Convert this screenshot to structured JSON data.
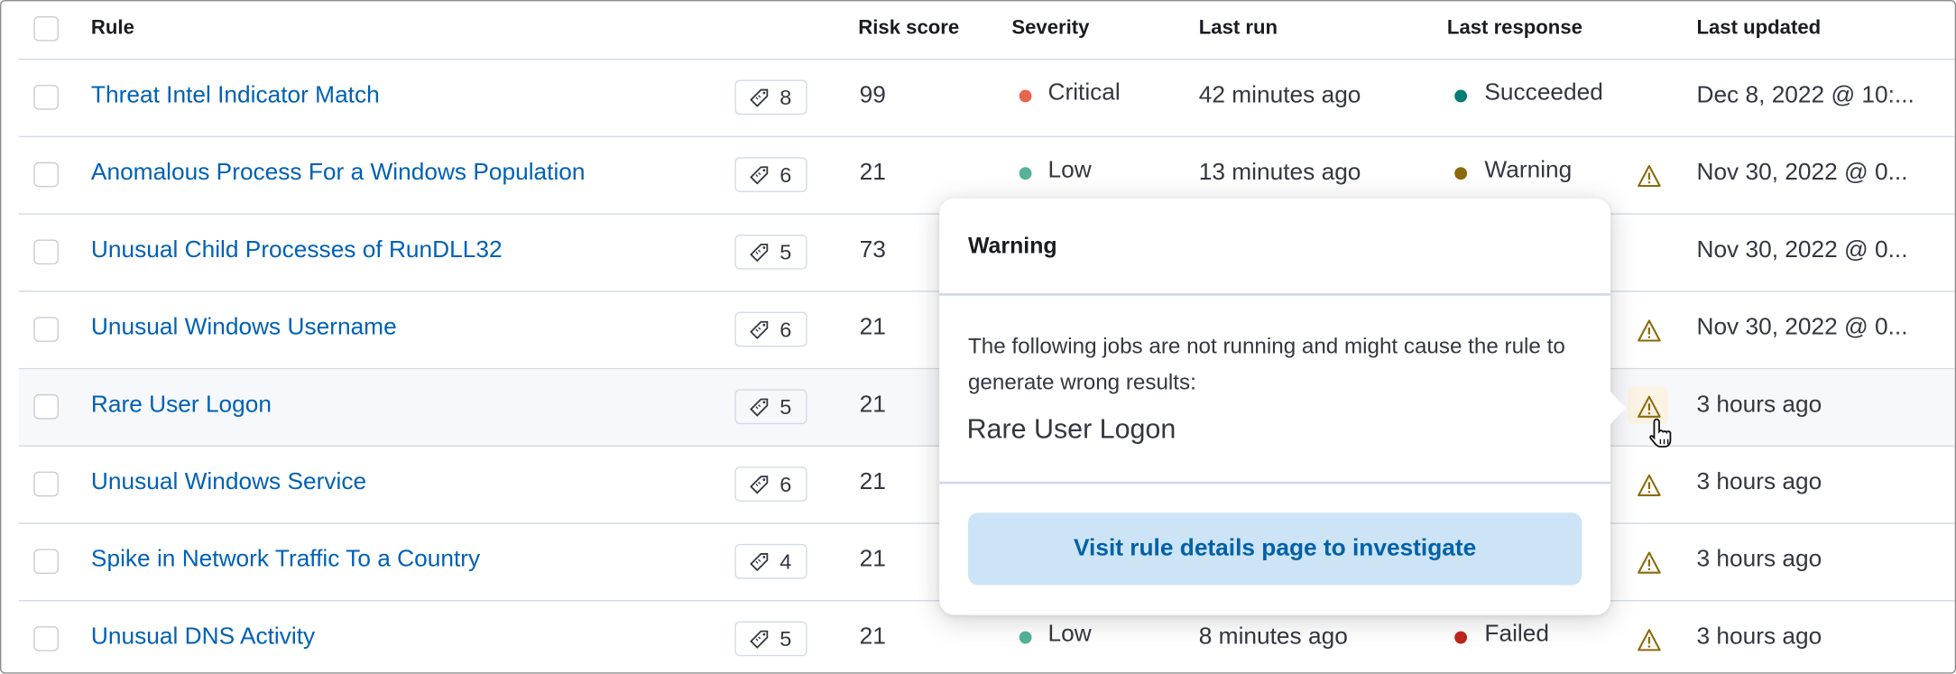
{
  "table": {
    "columns": [
      "Rule",
      "Risk score",
      "Severity",
      "Last run",
      "Last response",
      "Last updated"
    ],
    "rows": [
      {
        "rule": "Threat Intel Indicator Match",
        "tags": "8",
        "risk": "99",
        "severity": "Critical",
        "severity_color": "#e7664c",
        "last_run": "42 minutes ago",
        "last_response": "Succeeded",
        "response_color": "#017d73",
        "warning": false,
        "last_updated": "Dec 8, 2022 @ 10:..."
      },
      {
        "rule": "Anomalous Process For a Windows Population",
        "tags": "6",
        "risk": "21",
        "severity": "Low",
        "severity_color": "#54b399",
        "last_run": "13 minutes ago",
        "last_response": "Warning",
        "response_color": "#8a6a0a",
        "warning": true,
        "last_updated": "Nov 30, 2022 @ 0..."
      },
      {
        "rule": "Unusual Child Processes of RunDLL32",
        "tags": "5",
        "risk": "73",
        "warning": false,
        "last_updated": "Nov 30, 2022 @ 0..."
      },
      {
        "rule": "Unusual Windows Username",
        "tags": "6",
        "risk": "21",
        "warning": true,
        "last_updated": "Nov 30, 2022 @ 0..."
      },
      {
        "rule": "Rare User Logon",
        "tags": "5",
        "risk": "21",
        "warning": true,
        "last_updated": "3 hours ago"
      },
      {
        "rule": "Unusual Windows Service",
        "tags": "6",
        "risk": "21",
        "warning": true,
        "last_updated": "3 hours ago"
      },
      {
        "rule": "Spike in Network Traffic To a Country",
        "tags": "4",
        "risk": "21",
        "warning": true,
        "last_updated": "3 hours ago"
      },
      {
        "rule": "Unusual DNS Activity",
        "tags": "5",
        "risk": "21",
        "severity": "Low",
        "severity_color": "#54b399",
        "last_run": "8 minutes ago",
        "last_response": "Failed",
        "response_color": "#bd271e",
        "warning": true,
        "last_updated": "3 hours ago"
      }
    ]
  },
  "popover": {
    "title": "Warning",
    "body": "The following jobs are not running and might cause the rule to generate wrong results:",
    "job": "Rare User Logon",
    "button": "Visit rule details page to investigate"
  },
  "colors": {
    "link": "#0061b5",
    "warning_icon": "#8a6a0a",
    "button_bg": "#cce4f5"
  },
  "icons": {
    "tag": "tag-icon",
    "warning": "warning-triangle-icon",
    "cursor": "pointer-hand-icon"
  }
}
